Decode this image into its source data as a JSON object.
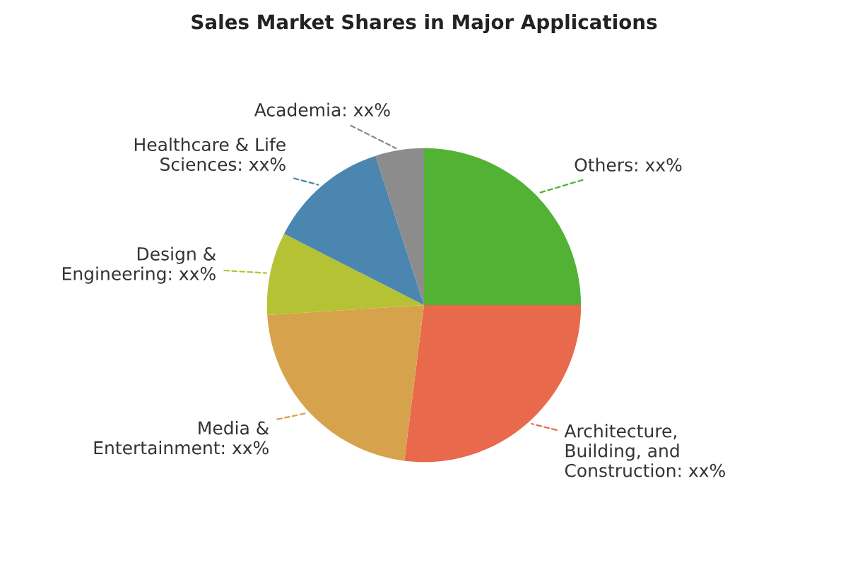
{
  "chart_data": {
    "type": "pie",
    "title": "Sales Market Shares in Major Applications",
    "categories": [
      "Others",
      "Architecture,\nBuilding, and\nConstruction",
      "Media &\nEntertainment",
      "Design &\nEngineering",
      "Healthcare & Life\nSciences",
      "Academia"
    ],
    "values": [
      25,
      27,
      22,
      8.5,
      12.5,
      5
    ],
    "value_labels": [
      "xx%",
      "xx%",
      "xx%",
      "xx%",
      "xx%",
      "xx%"
    ],
    "colors": [
      "#52b234",
      "#e8694c",
      "#d7a24c",
      "#b5c234",
      "#4a86b0",
      "#8c8c8c"
    ],
    "legend": false
  }
}
